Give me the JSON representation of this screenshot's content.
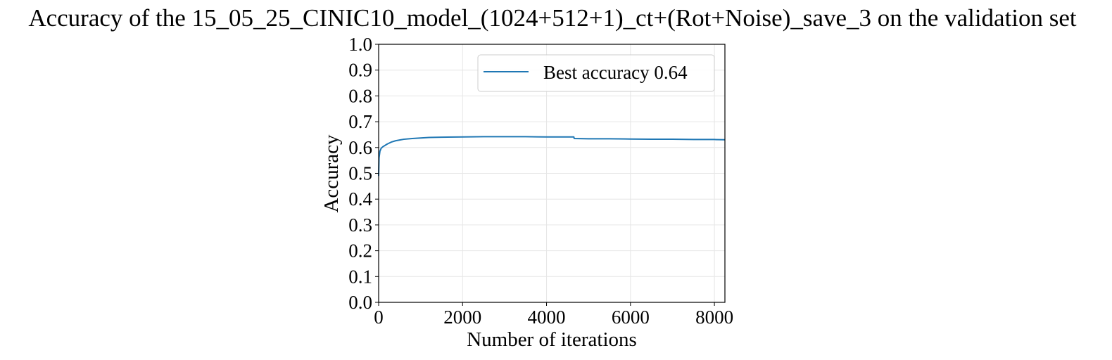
{
  "chart_data": {
    "type": "line",
    "title": "Accuracy of the 15_05_25_CINIC10_model_(1024+512+1)_ct+(Rot+Noise)_save_3 on the validation set",
    "xlabel": "Number of iterations",
    "ylabel": "Accuracy",
    "xlim": [
      0,
      8250
    ],
    "ylim": [
      0.0,
      1.0
    ],
    "xticks": [
      0,
      2000,
      4000,
      6000,
      8000
    ],
    "xtick_labels": [
      "0",
      "2000",
      "4000",
      "6000",
      "8000"
    ],
    "yticks": [
      0.0,
      0.1,
      0.2,
      0.3,
      0.4,
      0.5,
      0.6,
      0.7,
      0.8,
      0.9,
      1.0
    ],
    "ytick_labels": [
      "0.0",
      "0.1",
      "0.2",
      "0.3",
      "0.4",
      "0.5",
      "0.6",
      "0.7",
      "0.8",
      "0.9",
      "1.0"
    ],
    "grid": true,
    "legend_position": "top-right",
    "series": [
      {
        "name": "Best accuracy 0.64",
        "color": "#1f77b4",
        "x": [
          0,
          10,
          30,
          60,
          100,
          150,
          200,
          300,
          400,
          500,
          600,
          800,
          1000,
          1200,
          1500,
          2000,
          2500,
          3000,
          3500,
          4000,
          4500,
          4650,
          4660,
          5000,
          5500,
          6000,
          6500,
          7000,
          7500,
          8000,
          8250
        ],
        "y": [
          0.49,
          0.56,
          0.585,
          0.597,
          0.603,
          0.608,
          0.613,
          0.621,
          0.626,
          0.629,
          0.632,
          0.635,
          0.637,
          0.639,
          0.64,
          0.641,
          0.642,
          0.642,
          0.642,
          0.641,
          0.641,
          0.641,
          0.635,
          0.634,
          0.634,
          0.633,
          0.632,
          0.632,
          0.631,
          0.631,
          0.63
        ]
      }
    ]
  }
}
